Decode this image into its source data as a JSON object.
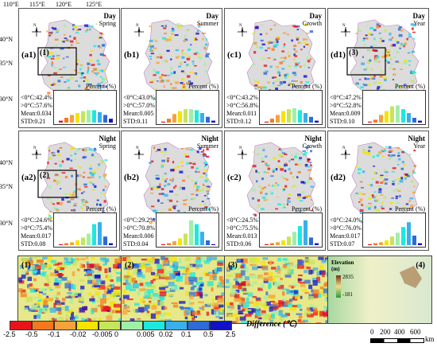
{
  "axis_labels": {
    "lon": [
      "110°E",
      "115°E",
      "120°E",
      "125°E"
    ],
    "lon_right": [
      "110°E",
      "115°E",
      "120°E",
      "125°E"
    ],
    "lat": [
      "40°N",
      "35°N",
      "30°N"
    ]
  },
  "percent_label": "Percent (%)",
  "panels": [
    {
      "label": "(a1)",
      "period": "Day",
      "season": "Spring",
      "neg": "<0°C:42.4%",
      "pos": ">0°C:57.6%",
      "mean": "Mean:0.034",
      "std": "STD:0.21",
      "box": "(1)",
      "hist": [
        2,
        5,
        8,
        10,
        12,
        13,
        13,
        11,
        8,
        4
      ]
    },
    {
      "label": "(b1)",
      "period": "Day",
      "season": "Summer",
      "neg": "<0°C:43.0%",
      "pos": ">0°C:57.0%",
      "mean": "Mean:0.005",
      "std": "STD:0.11",
      "box": "",
      "hist": [
        1,
        4,
        9,
        12,
        14,
        14,
        13,
        10,
        6,
        2
      ]
    },
    {
      "label": "(c1)",
      "period": "Day",
      "season": "Growth",
      "neg": "<0°C:43.2%",
      "pos": ">0°C:56.8%",
      "mean": "Mean:0.011",
      "std": "STD:0.12",
      "box": "",
      "hist": [
        1,
        4,
        8,
        12,
        14,
        15,
        13,
        10,
        6,
        2
      ]
    },
    {
      "label": "(d1)",
      "period": "Day",
      "season": "Year",
      "neg": "<0°C:47.2%",
      "pos": ">0°C:52.8%",
      "mean": "Mean:0.009",
      "std": "STD:0.10",
      "box": "(3)",
      "hist": [
        1,
        3,
        8,
        12,
        17,
        18,
        14,
        10,
        5,
        2
      ]
    },
    {
      "label": "(a2)",
      "period": "Night",
      "season": "Spring",
      "neg": "<0°C:24.6%",
      "pos": ">0°C:75.4%",
      "mean": "Mean:0.017",
      "std": "STD:0.08",
      "box": "(2)",
      "hist": [
        1,
        2,
        3,
        5,
        8,
        12,
        22,
        24,
        9,
        2
      ]
    },
    {
      "label": "(b2)",
      "period": "Night",
      "season": "Summer",
      "neg": "<0°C:29.2%",
      "pos": ">0°C:70.8%",
      "mean": "Mean:0.006",
      "std": "STD:0.04",
      "box": "",
      "hist": [
        1,
        2,
        4,
        7,
        12,
        26,
        22,
        14,
        5,
        1
      ]
    },
    {
      "label": "(c2)",
      "period": "Night",
      "season": "Growth",
      "neg": "<0°C:24.5%",
      "pos": ">0°C:75.5%",
      "mean": "Mean:0.013",
      "std": "STD:0.06",
      "box": "",
      "hist": [
        1,
        2,
        3,
        5,
        9,
        14,
        20,
        26,
        8,
        2
      ]
    },
    {
      "label": "(d2)",
      "period": "Night",
      "season": "Year",
      "neg": "<0°C:24.0%",
      "pos": ">0°C:76.0%",
      "mean": "Mean:0.017",
      "std": "STD:0.07",
      "box": "",
      "hist": [
        1,
        2,
        3,
        5,
        9,
        13,
        19,
        24,
        10,
        2
      ]
    }
  ],
  "zooms": [
    {
      "label": "(1)"
    },
    {
      "label": "(2)"
    },
    {
      "label": "(3)"
    },
    {
      "label": "(4)",
      "elev_title": "Elevation",
      "elev_unit": "(m)",
      "elev_high": "2835",
      "elev_low": "-181"
    }
  ],
  "legend": {
    "title": "Difference (℃)",
    "ticks": [
      "-2.5",
      "-0.5",
      "-0.1",
      "-0.02",
      "-0.005",
      "0",
      "0.005",
      "0.02",
      "0.1",
      "0.5",
      "2.5"
    ],
    "colors": [
      "#e8141b",
      "#f57820",
      "#f5a23c",
      "#f5e400",
      "#c6e45c",
      "#9ef0a8",
      "#1de8e0",
      "#39b0ec",
      "#2e6ad8",
      "#1410c8"
    ]
  },
  "scale": {
    "ticks": [
      "0",
      "200",
      "400",
      "600"
    ],
    "unit": "km"
  },
  "hist_colors": [
    "#e8141b",
    "#f57820",
    "#f5a23c",
    "#f5e400",
    "#c6e45c",
    "#9ef0a8",
    "#1de8e0",
    "#39b0ec",
    "#2e6ad8",
    "#1410c8"
  ]
}
